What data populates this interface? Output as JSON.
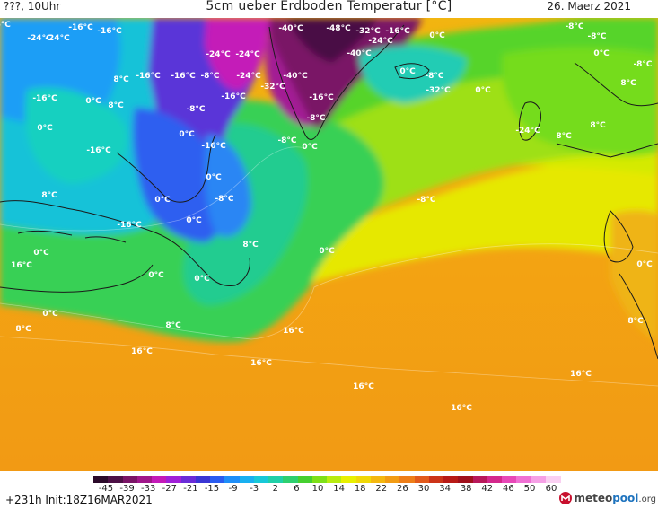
{
  "header": {
    "left": "???, 10Uhr",
    "title": "5cm ueber Erdboden Temperatur [°C]",
    "date": "26. Maerz 2021"
  },
  "footer": {
    "run": "+231h  Init:18Z16MAR2021"
  },
  "brand": {
    "name_part1": "meteo",
    "name_part2": "pool",
    "name_part3": ".org",
    "color_part1": "#444444",
    "color_part2": "#1e73be",
    "color_mark": "#c8102e",
    "mark_icon": "meteopool-logo-icon"
  },
  "legend": {
    "ticks": [
      "-45",
      "-39",
      "-33",
      "-27",
      "-21",
      "-15",
      "-9",
      "-3",
      "2",
      "6",
      "10",
      "14",
      "18",
      "22",
      "26",
      "30",
      "34",
      "38",
      "42",
      "46",
      "50",
      "60"
    ],
    "colors": [
      "#2b0a2a",
      "#4d1046",
      "#7a1466",
      "#a0168a",
      "#c41ab8",
      "#a020d8",
      "#6a2cd8",
      "#3a36d4",
      "#2a5cf0",
      "#1e8ef8",
      "#18b0f0",
      "#18c8d8",
      "#20d0a8",
      "#2ed070",
      "#46d030",
      "#7ee018",
      "#b8ec10",
      "#e8f000",
      "#f0d808",
      "#f4b810",
      "#f29c14",
      "#ee7e18",
      "#e25a1c",
      "#cc3418",
      "#b81a16",
      "#a0101c",
      "#b8185a",
      "#d4288c",
      "#e848b8",
      "#f070d4",
      "#f6a0e6",
      "#fad0f2"
    ]
  },
  "map_labels": [
    "-24°C",
    "-16°C",
    "-16°C",
    "-40°C",
    "-48°C",
    "-32°C",
    "-16°C",
    "0°C",
    "-8°C",
    "-24°C",
    "-24°C",
    "-24°C",
    "-40°C",
    "-24°C",
    "-8°C",
    "0°C",
    "-16°C",
    "-16°C",
    "-16°C",
    "-24°C",
    "-32°C",
    "-40°C",
    "0°C",
    "-8°C",
    "-8°C",
    "0°C",
    "8°C",
    "8°C",
    "-8°C",
    "-16°C",
    "-8°C",
    "-16°C",
    "-32°C",
    "0°C",
    "0°C",
    "-8°C",
    "-24°C",
    "8°C",
    "8°C",
    "8°C",
    "0°C",
    "-16°C",
    "0°C",
    "-8°C",
    "0°C",
    "-16°C",
    "0°C",
    "-8°C",
    "-8°C",
    "8°C",
    "0°C",
    "-16°C",
    "0°C",
    "0°C",
    "8°C",
    "0°C",
    "16°C",
    "0°C",
    "0°C",
    "0°C",
    "8°C",
    "16°C",
    "8°C",
    "8°C",
    "16°C",
    "16°C",
    "16°C",
    "16°C",
    "16°C",
    "16°C"
  ]
}
